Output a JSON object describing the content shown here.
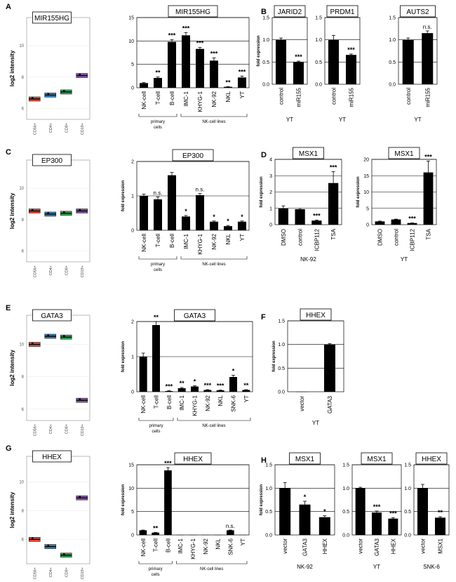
{
  "figure": {
    "panel_letters": [
      "A",
      "B",
      "C",
      "D",
      "E",
      "F",
      "G",
      "H"
    ]
  },
  "chart_data": [
    {
      "id": "A1",
      "type": "boxplot",
      "title": "MIR155HG",
      "ylabel": "log2 intensity",
      "categories": [
        "CD56+",
        "CD4+",
        "CD8+",
        "CD19+"
      ],
      "values": [
        6.6,
        6.85,
        7.05,
        8.1
      ],
      "ylim": [
        5.3,
        11.8
      ],
      "yticks": [
        6,
        8,
        10
      ],
      "colors": [
        "#e34a33",
        "#3182bd",
        "#31a354",
        "#8856a7"
      ]
    },
    {
      "id": "A2",
      "type": "bar",
      "title": "MIR155HG",
      "ylabel": "",
      "categories": [
        "NK-cell",
        "T-cell",
        "B-cell",
        "IMC-1",
        "KHYG-1",
        "NK-92",
        "NKL",
        "YT"
      ],
      "values": [
        1.0,
        2.1,
        9.8,
        11.2,
        8.3,
        5.8,
        0.2,
        2.2
      ],
      "errors": [
        0.1,
        0.2,
        0.5,
        0.6,
        0.3,
        0.6,
        0.05,
        0.3
      ],
      "annotations": [
        "",
        "**",
        "***",
        "***",
        "***",
        "***",
        "**",
        "***"
      ],
      "ylim": [
        0,
        15
      ],
      "yticks": [
        0,
        5,
        10,
        15
      ],
      "groups": [
        {
          "label": "primary cells",
          "from": 0,
          "to": 2
        },
        {
          "label": "NK-cell lines",
          "from": 3,
          "to": 7
        }
      ]
    },
    {
      "id": "B1",
      "type": "bar",
      "title": "JARID2",
      "ylabel": "fold expression",
      "categories": [
        "control",
        "miR155"
      ],
      "values": [
        1.0,
        0.5
      ],
      "errors": [
        0.04,
        0.02
      ],
      "annotations": [
        "",
        "***"
      ],
      "ylim": [
        0,
        1.5
      ],
      "yticks": [
        0,
        0.5,
        1.0,
        1.5
      ],
      "xlabel": "YT"
    },
    {
      "id": "B2",
      "type": "bar",
      "title": "PRDM1",
      "ylabel": "",
      "categories": [
        "control",
        "miR155"
      ],
      "values": [
        1.0,
        0.66
      ],
      "errors": [
        0.1,
        0.02
      ],
      "annotations": [
        "",
        "***"
      ],
      "ylim": [
        0,
        1.5
      ],
      "yticks": [
        0,
        0.5,
        1.0,
        1.5
      ],
      "xlabel": "YT"
    },
    {
      "id": "B3",
      "type": "bar",
      "title": "AUTS2",
      "ylabel": "",
      "categories": [
        "control",
        "miR155"
      ],
      "values": [
        1.0,
        1.15
      ],
      "errors": [
        0.04,
        0.05
      ],
      "annotations": [
        "",
        "n.s."
      ],
      "ylim": [
        0,
        1.5
      ],
      "yticks": [
        0,
        0.5,
        1.0,
        1.5
      ],
      "xlabel": "YT"
    },
    {
      "id": "C1",
      "type": "boxplot",
      "title": "EP300",
      "ylabel": "log2 intensity",
      "categories": [
        "CD56+",
        "CD4+",
        "CD8+",
        "CD19+"
      ],
      "values": [
        8.55,
        8.35,
        8.4,
        8.55
      ],
      "ylim": [
        5.3,
        11.8
      ],
      "yticks": [
        6,
        8,
        10
      ],
      "colors": [
        "#e34a33",
        "#3182bd",
        "#31a354",
        "#8856a7"
      ]
    },
    {
      "id": "C2",
      "type": "bar",
      "title": "EP300",
      "ylabel": "fold expression",
      "categories": [
        "NK-cell",
        "T-cell",
        "B-cell",
        "IMC-1",
        "KHYG-1",
        "NK-92",
        "NKL",
        "YT"
      ],
      "values": [
        1.0,
        0.9,
        1.6,
        0.4,
        1.02,
        0.25,
        0.12,
        0.25
      ],
      "errors": [
        0.05,
        0.07,
        0.08,
        0.03,
        0.05,
        0.02,
        0.02,
        0.02
      ],
      "annotations": [
        "",
        "n.s.",
        "",
        "*",
        "n.s.",
        "*",
        "*",
        "*"
      ],
      "ylim": [
        0,
        2
      ],
      "yticks": [
        0,
        1,
        2
      ],
      "groups": [
        {
          "label": "primary cells",
          "from": 0,
          "to": 2
        },
        {
          "label": "NK-cell lines",
          "from": 3,
          "to": 7
        }
      ]
    },
    {
      "id": "D1",
      "type": "bar",
      "title": "MSX1",
      "ylabel": "fold expression",
      "categories": [
        "DMSO",
        "control",
        "ICBP112",
        "TSA"
      ],
      "values": [
        1.0,
        0.95,
        0.25,
        2.55
      ],
      "errors": [
        0.15,
        0.05,
        0.03,
        0.7
      ],
      "annotations": [
        "",
        "",
        "***",
        "***"
      ],
      "ylim": [
        0,
        4
      ],
      "yticks": [
        0,
        1,
        2,
        3,
        4
      ],
      "xlabel": "NK-92"
    },
    {
      "id": "D2",
      "type": "bar",
      "title": "MSX1",
      "ylabel": "fold expression",
      "categories": [
        "DMSO",
        "control",
        "ICBP112",
        "TSA"
      ],
      "values": [
        1.0,
        1.6,
        0.5,
        16.0
      ],
      "errors": [
        0.1,
        0.1,
        0.05,
        3.5
      ],
      "annotations": [
        "",
        "",
        "***",
        "***"
      ],
      "ylim": [
        0,
        20
      ],
      "yticks": [
        0,
        5,
        10,
        15,
        20
      ],
      "xlabel": "YT"
    },
    {
      "id": "E1",
      "type": "boxplot",
      "title": "GATA3",
      "ylabel": "log2 intensity",
      "categories": [
        "CD56+",
        "CD4+",
        "CD8+",
        "CD19+"
      ],
      "values": [
        10.0,
        10.5,
        10.45,
        6.55
      ],
      "ylim": [
        5.3,
        11.8
      ],
      "yticks": [
        6,
        8,
        10
      ],
      "colors": [
        "#e34a33",
        "#3182bd",
        "#31a354",
        "#8856a7"
      ]
    },
    {
      "id": "E2",
      "type": "bar",
      "title": "GATA3",
      "ylabel": "fold expression",
      "categories": [
        "NK-cell",
        "T-cell",
        "B-cell",
        "IMC-1",
        "KHYG-1",
        "NK-92",
        "NKL",
        "SNK-6",
        "YT"
      ],
      "values": [
        1.0,
        1.9,
        0.02,
        0.1,
        0.15,
        0.05,
        0.04,
        0.42,
        0.05
      ],
      "errors": [
        0.1,
        0.1,
        0.01,
        0.02,
        0.02,
        0.01,
        0.01,
        0.05,
        0.01
      ],
      "annotations": [
        "",
        "**",
        "***",
        "**",
        "*",
        "***",
        "***",
        "*",
        "**"
      ],
      "ylim": [
        0,
        2
      ],
      "yticks": [
        0,
        1,
        2
      ],
      "groups": [
        {
          "label": "primary cells",
          "from": 0,
          "to": 2
        },
        {
          "label": "NK-cell lines",
          "from": 3,
          "to": 8
        }
      ]
    },
    {
      "id": "F1",
      "type": "bar",
      "title": "HHEX",
      "ylabel": "fold expression",
      "categories": [
        "vector",
        "GATA3"
      ],
      "values": [
        0.0,
        1.0
      ],
      "errors": [
        0,
        0.02
      ],
      "annotations": [
        "",
        ""
      ],
      "ylim": [
        0,
        1.5
      ],
      "yticks": [
        0,
        0.5,
        1.0,
        1.5
      ],
      "xlabel": "YT"
    },
    {
      "id": "G1",
      "type": "boxplot",
      "title": "HHEX",
      "ylabel": "log2 intensity",
      "categories": [
        "CD56+",
        "CD4+",
        "CD8+",
        "CD19+"
      ],
      "values": [
        6.0,
        5.5,
        4.9,
        8.9
      ],
      "ylim": [
        4.3,
        11.8
      ],
      "yticks": [
        6,
        8,
        10
      ],
      "colors": [
        "#e34a33",
        "#3182bd",
        "#31a354",
        "#8856a7"
      ]
    },
    {
      "id": "G2",
      "type": "bar",
      "title": "HHEX",
      "ylabel": "fold expression",
      "categories": [
        "NK-cell",
        "T-cell",
        "B-cell",
        "IMC-1",
        "KHYG-1",
        "NK-92",
        "NKL",
        "SNK-6",
        "YT"
      ],
      "values": [
        1.0,
        0.5,
        13.8,
        0.02,
        0.02,
        0.02,
        0.02,
        1.0,
        0.02
      ],
      "errors": [
        0.05,
        0.05,
        0.6,
        0,
        0,
        0,
        0,
        0.05,
        0
      ],
      "annotations": [
        "",
        "**",
        "***",
        "",
        "",
        "",
        "",
        "n.s.",
        ""
      ],
      "ylim": [
        0,
        15
      ],
      "yticks": [
        0,
        5,
        10,
        15
      ],
      "groups": [
        {
          "label": "primary cells",
          "from": 0,
          "to": 2
        },
        {
          "label": "NK-cell lines",
          "from": 3,
          "to": 8
        }
      ]
    },
    {
      "id": "H1",
      "type": "bar",
      "title": "MSX1",
      "ylabel": "fold expression",
      "categories": [
        "vector",
        "GATA3",
        "HHEX"
      ],
      "values": [
        1.0,
        0.65,
        0.38
      ],
      "errors": [
        0.12,
        0.07,
        0.03
      ],
      "annotations": [
        "",
        "*",
        "*"
      ],
      "ylim": [
        0,
        1.5
      ],
      "yticks": [
        0,
        0.5,
        1.0,
        1.5
      ],
      "xlabel": "NK-92"
    },
    {
      "id": "H2",
      "type": "bar",
      "title": "MSX1",
      "ylabel": "",
      "categories": [
        "vector",
        "GATA3",
        "HHEX"
      ],
      "values": [
        1.0,
        0.48,
        0.35
      ],
      "errors": [
        0.02,
        0.03,
        0.02
      ],
      "annotations": [
        "",
        "***",
        "***"
      ],
      "ylim": [
        0,
        1.5
      ],
      "yticks": [
        0,
        0.5,
        1.0,
        1.5
      ],
      "xlabel": "YT"
    },
    {
      "id": "H3",
      "type": "bar",
      "title": "HHEX",
      "ylabel": "",
      "categories": [
        "vector",
        "MSX1"
      ],
      "values": [
        1.0,
        0.37
      ],
      "errors": [
        0.08,
        0.02
      ],
      "annotations": [
        "",
        "**"
      ],
      "ylim": [
        0,
        1.5
      ],
      "yticks": [
        0,
        0.5,
        1.0,
        1.5
      ],
      "xlabel": "SNK-6"
    }
  ]
}
